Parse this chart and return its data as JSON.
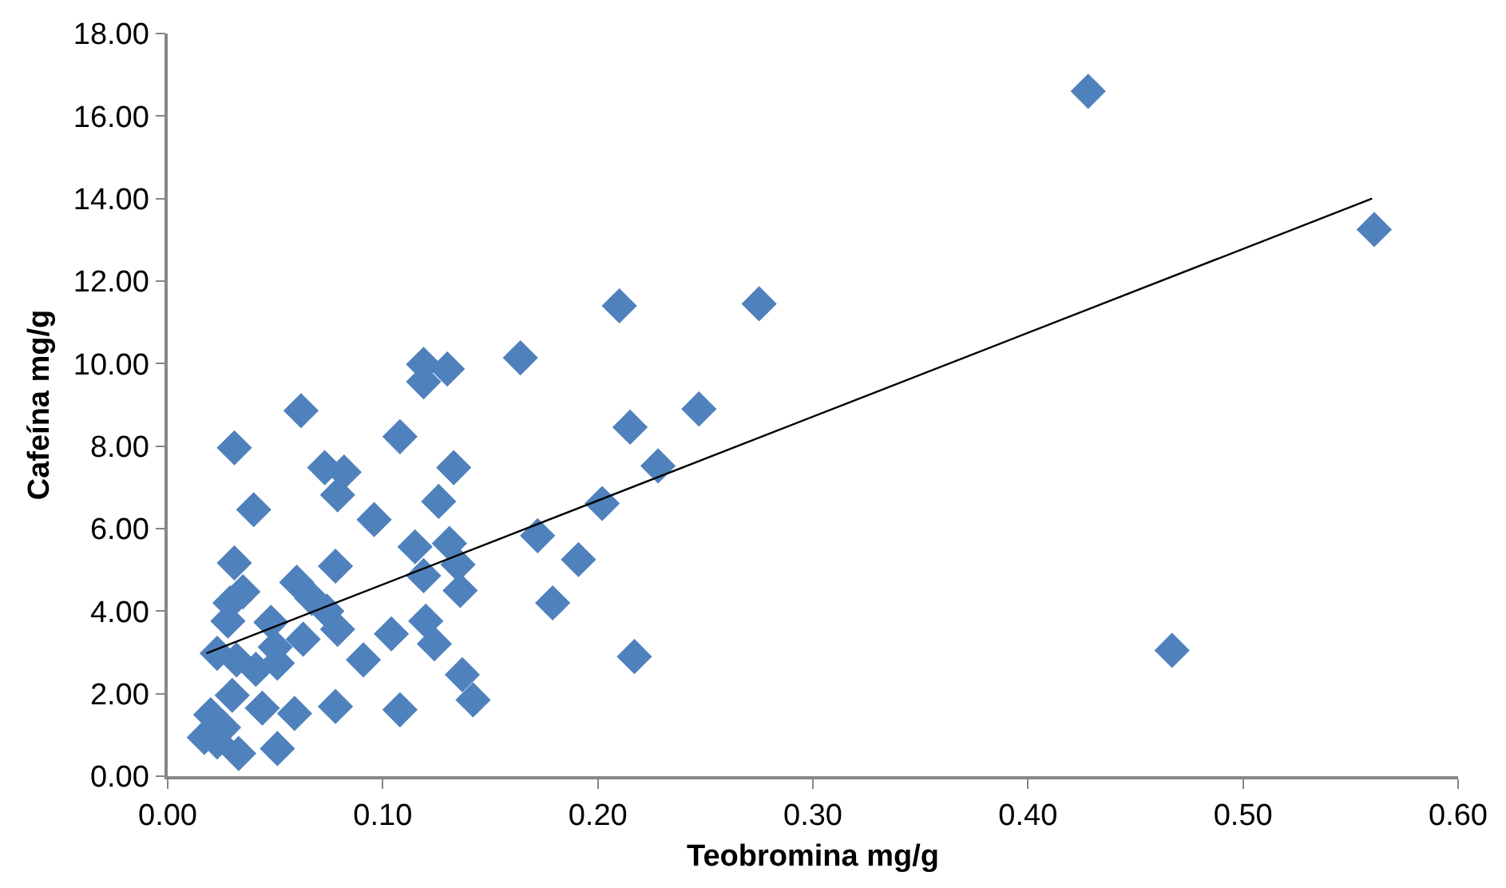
{
  "chart_data": {
    "type": "scatter",
    "xlabel": "Teobromina mg/g",
    "ylabel": "Cafeína mg/g",
    "xlim": [
      0,
      0.6
    ],
    "xticks": [
      {
        "value": 0,
        "label": "0.00"
      },
      {
        "value": 0.1,
        "label": "0.10"
      },
      {
        "value": 0.2,
        "label": "0.20"
      },
      {
        "value": 0.3,
        "label": "0.30"
      },
      {
        "value": 0.4,
        "label": "0.40"
      },
      {
        "value": 0.5,
        "label": "0.50"
      },
      {
        "value": 0.6,
        "label": "0.60"
      }
    ],
    "ylim": [
      0,
      18
    ],
    "yticks": [
      {
        "value": 0,
        "label": "0.00"
      },
      {
        "value": 2,
        "label": "2.00"
      },
      {
        "value": 4,
        "label": "4.00"
      },
      {
        "value": 6,
        "label": "6.00"
      },
      {
        "value": 8,
        "label": "8.00"
      },
      {
        "value": 10,
        "label": "10.00"
      },
      {
        "value": 12,
        "label": "12.00"
      },
      {
        "value": 14,
        "label": "14.00"
      },
      {
        "value": 16,
        "label": "16.00"
      },
      {
        "value": 18,
        "label": "18.00"
      }
    ],
    "series": [
      {
        "marker": "diamond",
        "color": "#4f81bd",
        "x": [
          0.428,
          0.561,
          0.467,
          0.21,
          0.275,
          0.164,
          0.119,
          0.13,
          0.119,
          0.062,
          0.247,
          0.031,
          0.108,
          0.215,
          0.228,
          0.073,
          0.082,
          0.079,
          0.133,
          0.04,
          0.126,
          0.096,
          0.202,
          0.172,
          0.115,
          0.131,
          0.135,
          0.119,
          0.136,
          0.191,
          0.031,
          0.078,
          0.035,
          0.029,
          0.028,
          0.06,
          0.067,
          0.074,
          0.179,
          0.079,
          0.063,
          0.104,
          0.12,
          0.124,
          0.091,
          0.048,
          0.023,
          0.217,
          0.137,
          0.142,
          0.05,
          0.041,
          0.051,
          0.032,
          0.078,
          0.108,
          0.059,
          0.03,
          0.044,
          0.02,
          0.017,
          0.026,
          0.033,
          0.051,
          0.023
        ],
        "values": [
          16.6,
          13.25,
          3.05,
          11.4,
          11.45,
          10.14,
          9.98,
          9.87,
          9.56,
          8.86,
          8.9,
          7.96,
          8.23,
          8.46,
          7.52,
          7.48,
          7.37,
          6.82,
          7.48,
          6.46,
          6.66,
          6.22,
          6.61,
          5.83,
          5.56,
          5.64,
          5.13,
          4.86,
          4.5,
          5.25,
          5.17,
          5.09,
          4.47,
          4.2,
          3.76,
          4.7,
          4.31,
          4.0,
          4.2,
          3.56,
          3.32,
          3.45,
          3.76,
          3.21,
          2.82,
          3.73,
          2.98,
          2.9,
          2.46,
          1.85,
          3.13,
          2.59,
          2.74,
          2.82,
          1.69,
          1.61,
          1.52,
          1.96,
          1.65,
          1.49,
          0.94,
          1.18,
          0.55,
          0.67,
          0.83
        ]
      },
      {
        "type": "line",
        "marker": "none",
        "color": "#000000",
        "x": [
          0.018,
          0.56
        ],
        "values": [
          2.98,
          14.0
        ]
      }
    ]
  }
}
